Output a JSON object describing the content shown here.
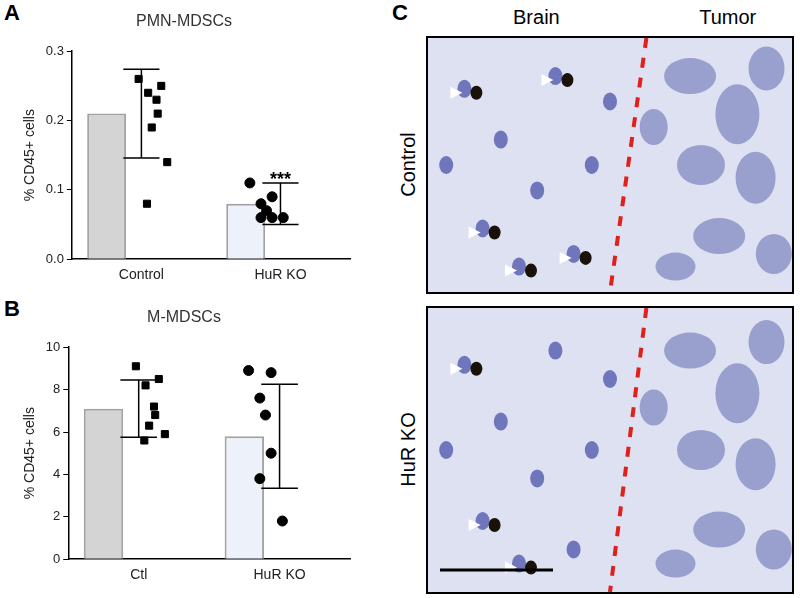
{
  "panel_labels": [
    "A",
    "B",
    "C"
  ],
  "chart_data": [
    {
      "type": "bar",
      "title": "PMN-MDSCs",
      "ylabel": "% CD45+ cells",
      "categories": [
        "Control",
        "HuR KO"
      ],
      "values": [
        0.21,
        0.08
      ],
      "error": [
        0.064,
        0.03
      ],
      "colors": [
        "#d4d4d4",
        "#edf2fa"
      ],
      "points": [
        {
          "category": "Control",
          "marker": "square",
          "color": "#000000",
          "values": [
            0.26,
            0.25,
            0.24,
            0.23,
            0.21,
            0.19,
            0.14,
            0.08
          ]
        },
        {
          "category": "HuR KO",
          "marker": "circle",
          "color": "#000000",
          "values": [
            0.11,
            0.09,
            0.08,
            0.07,
            0.06,
            0.06,
            0.06
          ]
        }
      ],
      "annotations": [
        {
          "category": "HuR KO",
          "text": "***"
        }
      ],
      "ylim": [
        0,
        0.3
      ],
      "yticks": [
        {
          "value": 0,
          "label": "0.0"
        },
        0.1,
        0.2,
        0.3
      ],
      "grid": false
    },
    {
      "type": "bar",
      "title": "M-MDSCs",
      "ylabel": "% CD45+ cells",
      "categories": [
        "Ctl",
        "HuR KO"
      ],
      "values": [
        7.1,
        5.8
      ],
      "error": [
        1.35,
        2.45
      ],
      "colors": [
        "#d4d4d4",
        "#edf2fa"
      ],
      "points": [
        {
          "category": "Ctl",
          "marker": "square",
          "color": "#000000",
          "values": [
            9.1,
            8.5,
            8.2,
            7.2,
            6.8,
            6.3,
            5.9,
            5.6
          ]
        },
        {
          "category": "HuR KO",
          "marker": "circle",
          "color": "#000000",
          "values": [
            8.9,
            8.8,
            7.6,
            6.8,
            5.0,
            3.8,
            1.8
          ]
        }
      ],
      "ylim": [
        0,
        10
      ],
      "yticks": [
        0,
        2,
        4,
        6,
        8,
        10
      ],
      "grid": false
    }
  ],
  "image_panel": {
    "columns": [
      "Brain",
      "Tumor"
    ],
    "rows": [
      "Control",
      "HuR KO"
    ]
  }
}
